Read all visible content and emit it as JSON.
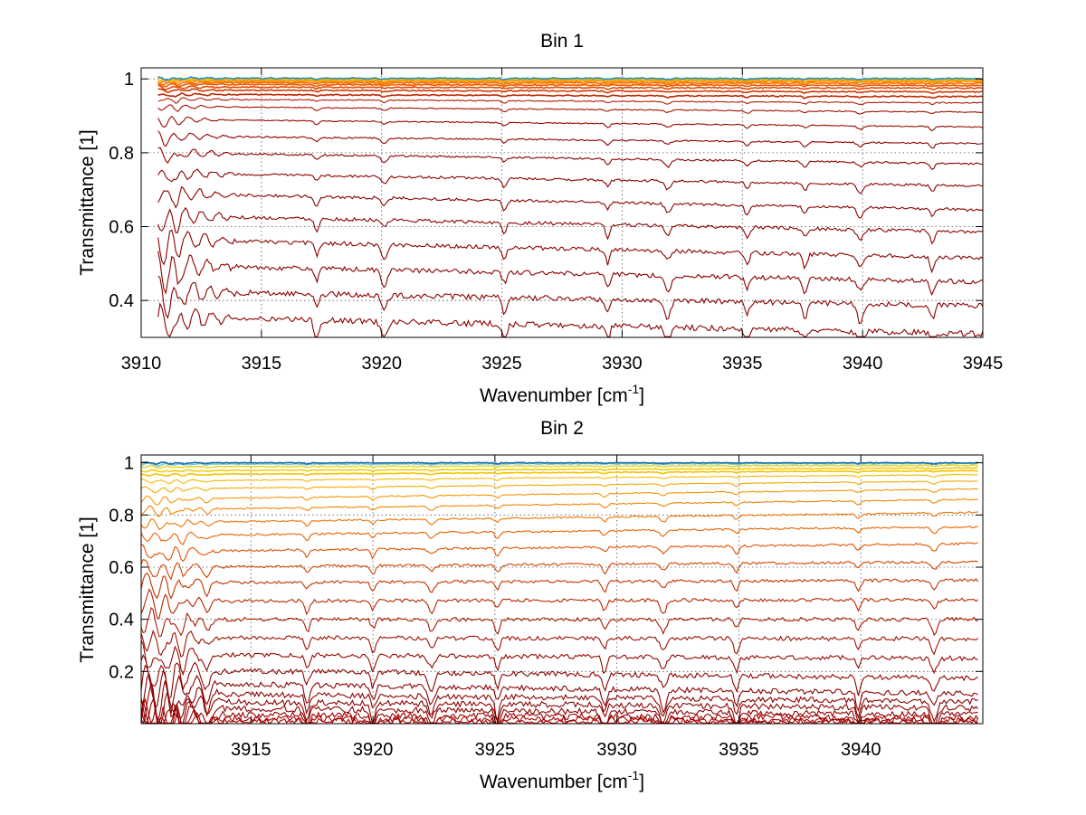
{
  "chart_data": [
    {
      "type": "line",
      "title": "Bin 1",
      "xlabel": "Wavenumber [cm",
      "xlabel_sup": "-1",
      "xlabel_end": "]",
      "ylabel": "Transmittance [1]",
      "xlim": [
        3910,
        3945
      ],
      "ylim": [
        0.3,
        1.03
      ],
      "xticks": [
        3910,
        3915,
        3920,
        3925,
        3930,
        3935,
        3940,
        3945
      ],
      "xtick_labels": [
        "3910",
        "3915",
        "3920",
        "3925",
        "3930",
        "3935",
        "3940",
        "3945"
      ],
      "yticks": [
        0.4,
        0.6,
        0.8,
        1
      ],
      "ytick_labels": [
        "0.4",
        "0.6",
        "0.8",
        "1"
      ],
      "grid": true,
      "x_start": 3910.7,
      "x_end": 3945,
      "absorption_lines": [
        3911.0,
        3911.5,
        3917.3,
        3920.1,
        3925.1,
        3929.4,
        3931.9,
        3935.2,
        3937.6,
        3939.9,
        3942.9
      ],
      "series": [
        {
          "start": 0.355,
          "end": 0.31,
          "color": "#8b0000"
        },
        {
          "start": 0.425,
          "end": 0.385,
          "color": "#8b0000"
        },
        {
          "start": 0.495,
          "end": 0.45,
          "color": "#8b0000"
        },
        {
          "start": 0.565,
          "end": 0.515,
          "color": "#8b0000"
        },
        {
          "start": 0.63,
          "end": 0.585,
          "color": "#8b0000"
        },
        {
          "start": 0.69,
          "end": 0.645,
          "color": "#8b0000"
        },
        {
          "start": 0.745,
          "end": 0.71,
          "color": "#8b0000"
        },
        {
          "start": 0.8,
          "end": 0.77,
          "color": "#8e0000"
        },
        {
          "start": 0.845,
          "end": 0.825,
          "color": "#920000"
        },
        {
          "start": 0.89,
          "end": 0.87,
          "color": "#980800"
        },
        {
          "start": 0.925,
          "end": 0.91,
          "color": "#a31000"
        },
        {
          "start": 0.945,
          "end": 0.935,
          "color": "#b01a00"
        },
        {
          "start": 0.958,
          "end": 0.952,
          "color": "#c02800"
        },
        {
          "start": 0.97,
          "end": 0.965,
          "color": "#d03800"
        },
        {
          "start": 0.978,
          "end": 0.975,
          "color": "#e04800"
        },
        {
          "start": 0.985,
          "end": 0.982,
          "color": "#ee5a00"
        },
        {
          "start": 0.99,
          "end": 0.988,
          "color": "#f76f00"
        },
        {
          "start": 0.994,
          "end": 0.993,
          "color": "#fa8800"
        },
        {
          "start": 0.997,
          "end": 0.996,
          "color": "#fba000"
        },
        {
          "start": 1.0,
          "end": 0.999,
          "color": "#f0b800"
        },
        {
          "start": 1.002,
          "end": 1.001,
          "color": "#1f8fbf"
        }
      ]
    },
    {
      "type": "line",
      "title": "Bin 2",
      "xlabel": "Wavenumber [cm",
      "xlabel_sup": "-1",
      "xlabel_end": "]",
      "ylabel": "Transmittance [1]",
      "xlim": [
        3910.5,
        3945
      ],
      "ylim": [
        0.0,
        1.03
      ],
      "xticks": [
        3915,
        3920,
        3925,
        3930,
        3935,
        3940
      ],
      "xtick_labels": [
        "3915",
        "3920",
        "3925",
        "3930",
        "3935",
        "3940"
      ],
      "yticks": [
        0.2,
        0.4,
        0.6,
        0.8,
        1
      ],
      "ytick_labels": [
        "0.2",
        "0.4",
        "0.6",
        "0.8",
        "1"
      ],
      "grid": true,
      "x_start": 3910.5,
      "x_end": 3944.8,
      "absorption_lines": [
        3911.2,
        3911.7,
        3912.2,
        3913.2,
        3917.3,
        3920.0,
        3922.4,
        3925.1,
        3929.5,
        3931.9,
        3934.9,
        3939.9,
        3943.0
      ],
      "series": [
        {
          "start": 0.01,
          "end": 0.005,
          "color": "#b30000"
        },
        {
          "start": 0.02,
          "end": 0.012,
          "color": "#a80000"
        },
        {
          "start": 0.035,
          "end": 0.02,
          "color": "#9a0000"
        },
        {
          "start": 0.06,
          "end": 0.035,
          "color": "#8f0000"
        },
        {
          "start": 0.085,
          "end": 0.06,
          "color": "#8b0000"
        },
        {
          "start": 0.115,
          "end": 0.085,
          "color": "#8b0000"
        },
        {
          "start": 0.155,
          "end": 0.115,
          "color": "#8b0000"
        },
        {
          "start": 0.205,
          "end": 0.175,
          "color": "#8e0400"
        },
        {
          "start": 0.265,
          "end": 0.25,
          "color": "#950800"
        },
        {
          "start": 0.33,
          "end": 0.325,
          "color": "#9e1000"
        },
        {
          "start": 0.4,
          "end": 0.4,
          "color": "#aa1a00"
        },
        {
          "start": 0.47,
          "end": 0.475,
          "color": "#b82400"
        },
        {
          "start": 0.54,
          "end": 0.55,
          "color": "#c63200"
        },
        {
          "start": 0.6,
          "end": 0.62,
          "color": "#d44200"
        },
        {
          "start": 0.66,
          "end": 0.69,
          "color": "#e05200"
        },
        {
          "start": 0.72,
          "end": 0.755,
          "color": "#ea6200"
        },
        {
          "start": 0.77,
          "end": 0.81,
          "color": "#f07200"
        },
        {
          "start": 0.82,
          "end": 0.86,
          "color": "#f48400"
        },
        {
          "start": 0.86,
          "end": 0.9,
          "color": "#f69600"
        },
        {
          "start": 0.9,
          "end": 0.93,
          "color": "#f7a800"
        },
        {
          "start": 0.93,
          "end": 0.955,
          "color": "#f7b800"
        },
        {
          "start": 0.955,
          "end": 0.97,
          "color": "#f5c400"
        },
        {
          "start": 0.97,
          "end": 0.98,
          "color": "#f2cc10"
        },
        {
          "start": 0.985,
          "end": 0.99,
          "color": "#e8d830"
        },
        {
          "start": 0.995,
          "end": 0.997,
          "color": "#7fc8d0"
        },
        {
          "start": 1.0,
          "end": 1.0,
          "color": "#1e6fb0"
        }
      ]
    }
  ]
}
